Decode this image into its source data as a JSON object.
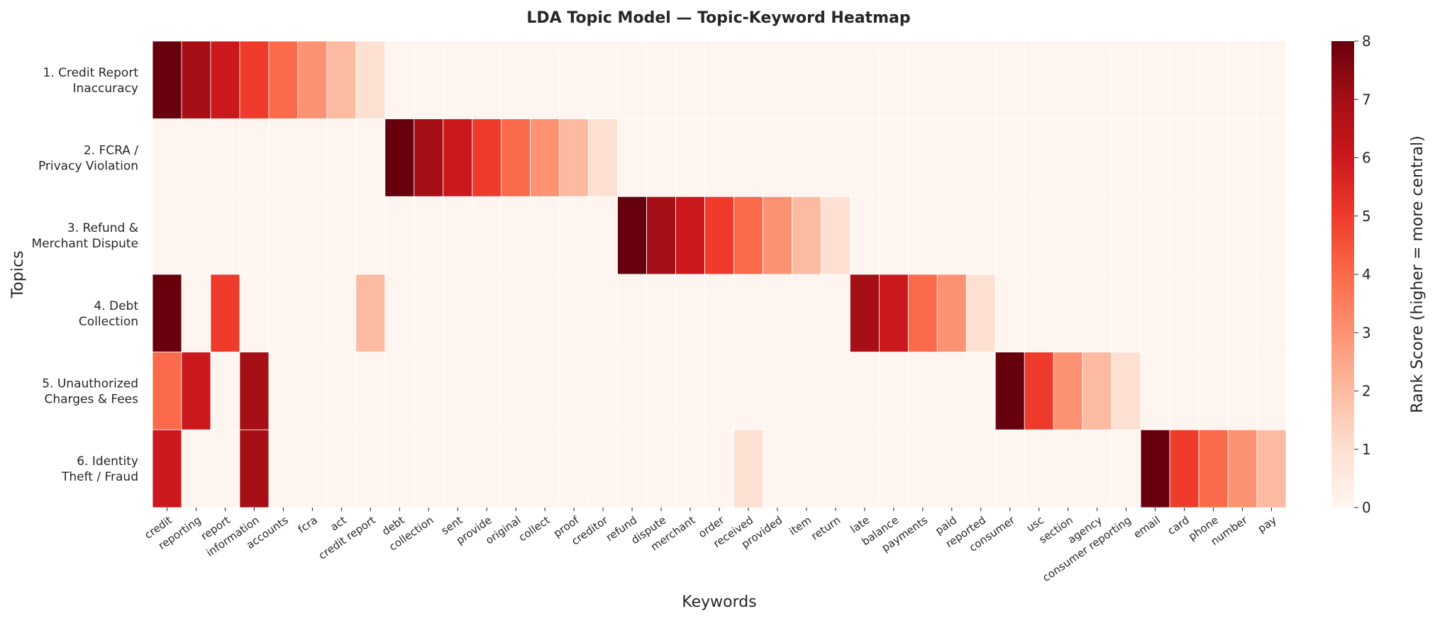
{
  "chart_data": {
    "type": "heatmap",
    "title": "LDA Topic Model — Topic-Keyword Heatmap",
    "xlabel": "Keywords",
    "ylabel": "Topics",
    "colorbar_label": "Rank Score (higher = more central)",
    "colorbar_ticks": [
      "0",
      "1",
      "2",
      "3",
      "4",
      "5",
      "6",
      "7",
      "8"
    ],
    "value_range": [
      0,
      8
    ],
    "colormap": "Reds",
    "rows": [
      [
        "1. Credit Report",
        "Inaccuracy"
      ],
      [
        "2. FCRA /",
        "Privacy Violation"
      ],
      [
        "3. Refund &",
        "Merchant Dispute"
      ],
      [
        "4. Debt",
        "Collection"
      ],
      [
        "5. Unauthorized",
        "Charges & Fees"
      ],
      [
        "6. Identity",
        "Theft / Fraud"
      ]
    ],
    "columns": [
      "credit",
      "reporting",
      "report",
      "information",
      "accounts",
      "fcra",
      "act",
      "credit report",
      "debt",
      "collection",
      "sent",
      "provide",
      "original",
      "collect",
      "proof",
      "creditor",
      "refund",
      "dispute",
      "merchant",
      "order",
      "received",
      "provided",
      "item",
      "return",
      "late",
      "balance",
      "payments",
      "paid",
      "reported",
      "consumer",
      "usc",
      "section",
      "agency",
      "consumer reporting",
      "email",
      "card",
      "phone",
      "number",
      "pay"
    ],
    "values": [
      [
        8,
        7,
        6,
        5,
        4,
        3,
        2,
        1,
        0,
        0,
        0,
        0,
        0,
        0,
        0,
        0,
        0,
        0,
        0,
        0,
        0,
        0,
        0,
        0,
        0,
        0,
        0,
        0,
        0,
        0,
        0,
        0,
        0,
        0,
        0,
        0,
        0,
        0,
        0
      ],
      [
        0,
        0,
        0,
        0,
        0,
        0,
        0,
        0,
        8,
        7,
        6,
        5,
        4,
        3,
        2,
        1,
        0,
        0,
        0,
        0,
        0,
        0,
        0,
        0,
        0,
        0,
        0,
        0,
        0,
        0,
        0,
        0,
        0,
        0,
        0,
        0,
        0,
        0,
        0
      ],
      [
        0,
        0,
        0,
        0,
        0,
        0,
        0,
        0,
        0,
        0,
        0,
        0,
        0,
        0,
        0,
        0,
        8,
        7,
        6,
        5,
        4,
        3,
        2,
        1,
        0,
        0,
        0,
        0,
        0,
        0,
        0,
        0,
        0,
        0,
        0,
        0,
        0,
        0,
        0
      ],
      [
        8,
        0,
        5,
        0,
        0,
        0,
        0,
        2,
        0,
        0,
        0,
        0,
        0,
        0,
        0,
        0,
        0,
        0,
        0,
        0,
        0,
        0,
        0,
        0,
        7,
        6,
        4,
        3,
        1,
        0,
        0,
        0,
        0,
        0,
        0,
        0,
        0,
        0,
        0
      ],
      [
        4,
        6,
        0,
        7,
        0,
        0,
        0,
        0,
        0,
        0,
        0,
        0,
        0,
        0,
        0,
        0,
        0,
        0,
        0,
        0,
        0,
        0,
        0,
        0,
        0,
        0,
        0,
        0,
        0,
        8,
        5,
        3,
        2,
        1,
        0,
        0,
        0,
        0,
        0
      ],
      [
        6,
        0,
        0,
        7,
        0,
        0,
        0,
        0,
        0,
        0,
        0,
        0,
        0,
        0,
        0,
        0,
        0,
        0,
        0,
        0,
        1,
        0,
        0,
        0,
        0,
        0,
        0,
        0,
        0,
        0,
        0,
        0,
        0,
        0,
        8,
        5,
        4,
        3,
        2
      ]
    ]
  }
}
